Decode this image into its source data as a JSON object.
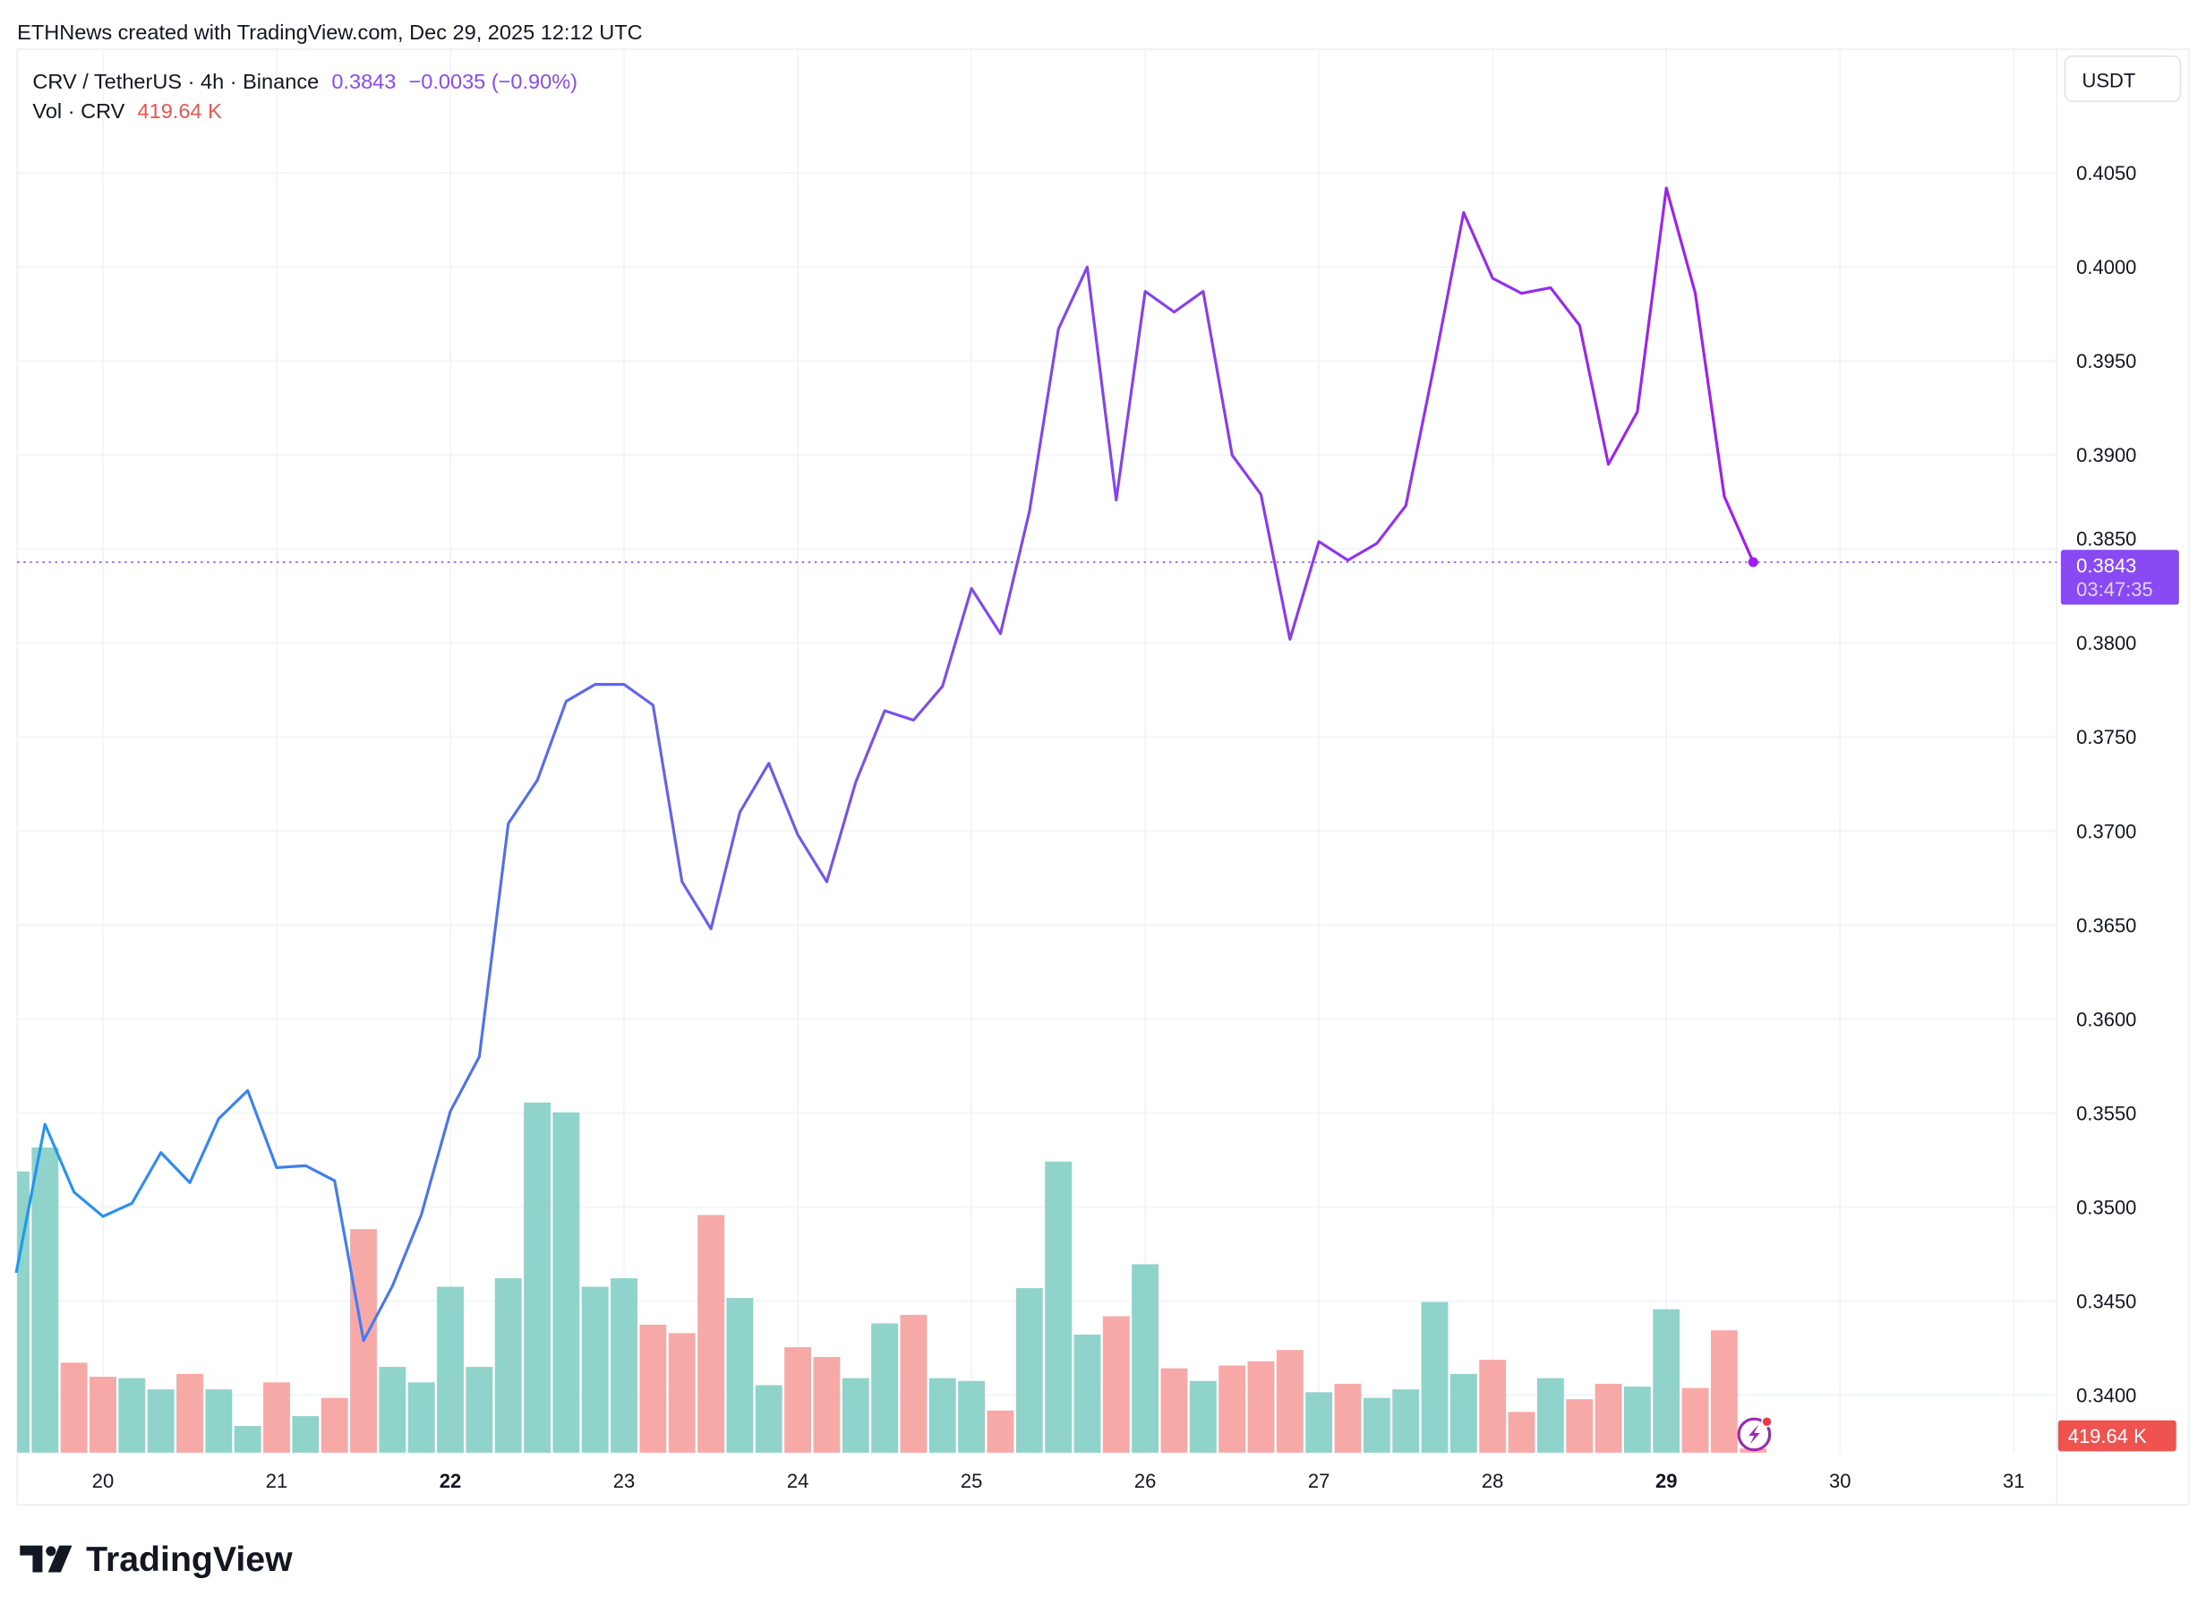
{
  "attribution": "ETHNews created with TradingView.com, Dec 29, 2025 12:12 UTC",
  "legend": {
    "symbol": "CRV / TetherUS · 4h · Binance",
    "last": "0.3843",
    "change": "−0.0035 (−0.90%)",
    "vol_label": "Vol · CRV",
    "vol_value": "419.64 K"
  },
  "currency_button": "USDT",
  "price_tag": {
    "value": "0.3843",
    "countdown": "03:47:35"
  },
  "volume_tag": "419.64 K",
  "logo_text": "TradingView",
  "colors": {
    "line_start": "#2196F3",
    "line_mid": "#7B4FF0",
    "line_end": "#A21CF2",
    "up": "#8FD3CB",
    "down": "#F7A9A7",
    "tag": "#8A4AF3",
    "vol_tag": "#EF5350"
  },
  "chart_data": {
    "type": "line",
    "title": "CRV / TetherUS · 4h · Binance",
    "xlabel": "",
    "ylabel": "USDT",
    "ylim": [
      0.3375,
      0.408
    ],
    "y_ticks": [
      "0.3400",
      "0.3450",
      "0.3500",
      "0.3550",
      "0.3600",
      "0.3650",
      "0.3700",
      "0.3750",
      "0.3800",
      "0.3850",
      "0.3900",
      "0.3950",
      "0.4000",
      "0.4050"
    ],
    "x_ticks": [
      {
        "day": 20,
        "label": "20",
        "bold": false
      },
      {
        "day": 21,
        "label": "21",
        "bold": false
      },
      {
        "day": 22,
        "label": "22",
        "bold": true
      },
      {
        "day": 23,
        "label": "23",
        "bold": false
      },
      {
        "day": 24,
        "label": "24",
        "bold": false
      },
      {
        "day": 25,
        "label": "25",
        "bold": false
      },
      {
        "day": 26,
        "label": "26",
        "bold": false
      },
      {
        "day": 27,
        "label": "27",
        "bold": false
      },
      {
        "day": 28,
        "label": "28",
        "bold": false
      },
      {
        "day": 29,
        "label": "29",
        "bold": true
      },
      {
        "day": 30,
        "label": "30",
        "bold": false
      },
      {
        "day": 31,
        "label": "31",
        "bold": false
      }
    ],
    "bar_interval_hours": 4,
    "first_bar_day": 19.5,
    "series": [
      {
        "name": "CRV/USDT close",
        "values": [
          0.3465,
          0.3544,
          0.3508,
          0.3495,
          0.3502,
          0.3529,
          0.3513,
          0.3547,
          0.3562,
          0.3521,
          0.3522,
          0.3514,
          0.3429,
          0.3458,
          0.3496,
          0.3551,
          0.358,
          0.3704,
          0.3727,
          0.3769,
          0.3778,
          0.3778,
          0.3767,
          0.3673,
          0.3648,
          0.371,
          0.3736,
          0.3698,
          0.3673,
          0.3726,
          0.3764,
          0.3759,
          0.3777,
          0.3829,
          0.3805,
          0.387,
          0.3967,
          0.4,
          0.3876,
          0.3987,
          0.3976,
          0.3987,
          0.39,
          0.3879,
          0.3802,
          0.3854,
          0.3844,
          0.3853,
          0.3873,
          0.3949,
          0.4029,
          0.3994,
          0.3986,
          0.3989,
          0.3969,
          0.3895,
          0.3923,
          0.4042,
          0.3986,
          0.3878,
          0.3843
        ]
      },
      {
        "name": "Volume (K)",
        "values": [
          28000,
          30380,
          8960,
          7560,
          7420,
          6300,
          7840,
          6300,
          2660,
          7000,
          3640,
          5460,
          22260,
          8540,
          7000,
          16520,
          8540,
          17360,
          34860,
          33880,
          16520,
          17360,
          12740,
          11900,
          23660,
          15400,
          6720,
          10500,
          9520,
          7420,
          12880,
          13720,
          7420,
          7140,
          4200,
          16380,
          28980,
          11760,
          13580,
          18760,
          8400,
          7140,
          8680,
          9100,
          10220,
          6020,
          6860,
          5460,
          6300,
          15000,
          7840,
          9240,
          4060,
          7420,
          5320,
          6860,
          6580,
          14280,
          6440,
          12180,
          420
        ]
      },
      {
        "name": "Volume direction",
        "values": [
          "up",
          "up",
          "down",
          "down",
          "up",
          "up",
          "down",
          "up",
          "up",
          "down",
          "up",
          "down",
          "down",
          "up",
          "up",
          "up",
          "up",
          "up",
          "up",
          "up",
          "up",
          "up",
          "down",
          "down",
          "down",
          "up",
          "up",
          "down",
          "down",
          "up",
          "up",
          "down",
          "up",
          "up",
          "down",
          "up",
          "up",
          "up",
          "down",
          "up",
          "down",
          "up",
          "down",
          "down",
          "down",
          "up",
          "down",
          "up",
          "up",
          "up",
          "up",
          "down",
          "down",
          "up",
          "down",
          "down",
          "up",
          "up",
          "down",
          "down",
          "down"
        ]
      }
    ]
  }
}
